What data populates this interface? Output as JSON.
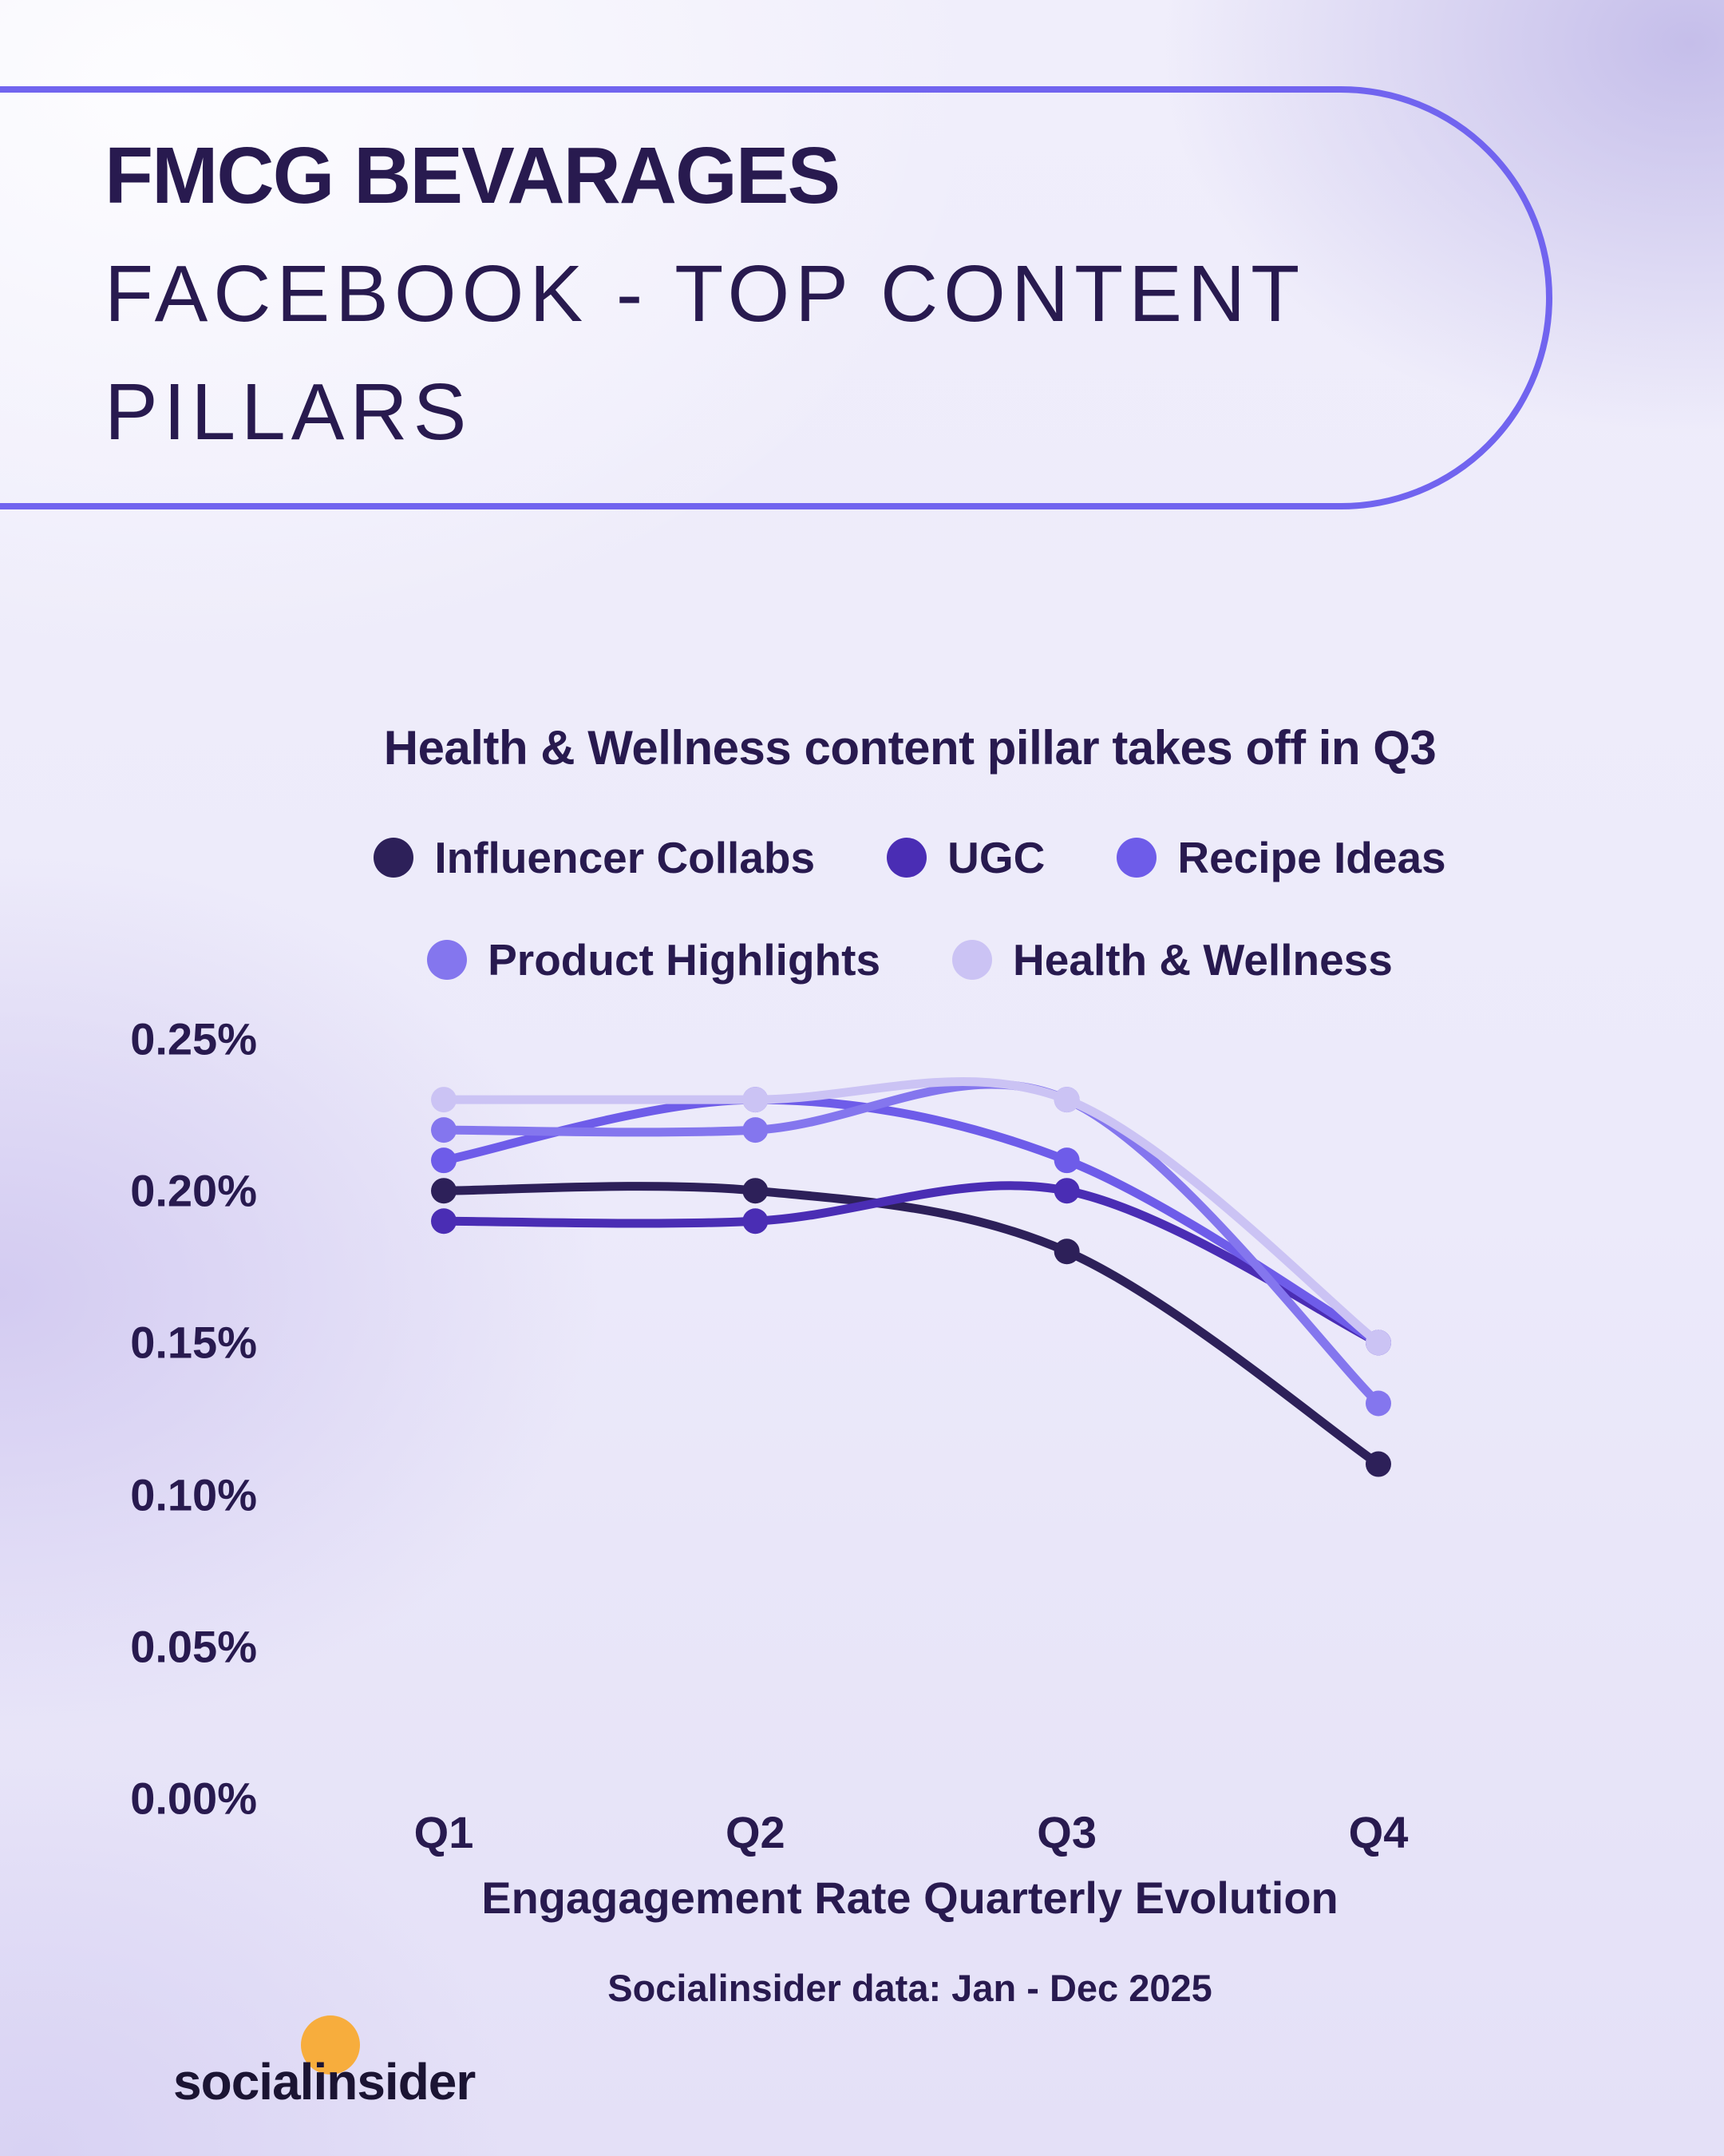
{
  "header": {
    "title_line1": "FMCG BEVARAGES",
    "title_line2": "FACEBOOK - TOP CONTENT",
    "title_line3": "PILLARS"
  },
  "chart_data": {
    "type": "line",
    "title": "Health & Wellness content pillar takes off in Q3",
    "categories": [
      "Q1",
      "Q2",
      "Q3",
      "Q4"
    ],
    "series": [
      {
        "name": "Influencer Collabs",
        "color": "#2d2059",
        "values": [
          0.2,
          0.2,
          0.18,
          0.11
        ]
      },
      {
        "name": "UGC",
        "color": "#4a2db4",
        "values": [
          0.19,
          0.19,
          0.2,
          0.15
        ]
      },
      {
        "name": "Recipe Ideas",
        "color": "#6e5ce9",
        "values": [
          0.21,
          0.23,
          0.21,
          0.15
        ]
      },
      {
        "name": "Product Highlights",
        "color": "#8476ee",
        "values": [
          0.22,
          0.22,
          0.23,
          0.13
        ]
      },
      {
        "name": "Health & Wellness",
        "color": "#cbc3f4",
        "values": [
          0.23,
          0.23,
          0.23,
          0.15
        ]
      }
    ],
    "legend_rows": [
      3,
      2
    ],
    "legend_position": "top",
    "xlabel": "Engagagement Rate Quarterly Evolution",
    "ylabel": "",
    "ylim": [
      0,
      0.0025
    ],
    "yticks": [
      "0.25%",
      "0.20%",
      "0.15%",
      "0.10%",
      "0.05%",
      "0.00%"
    ],
    "grid": false
  },
  "source_note": "Socialinsider data: Jan - Dec 2025",
  "logo": {
    "text": "socialinsider",
    "accent_color": "#f7ad3d"
  },
  "style": {
    "accent_border": "#7164ef",
    "text_color": "#281a4f"
  }
}
